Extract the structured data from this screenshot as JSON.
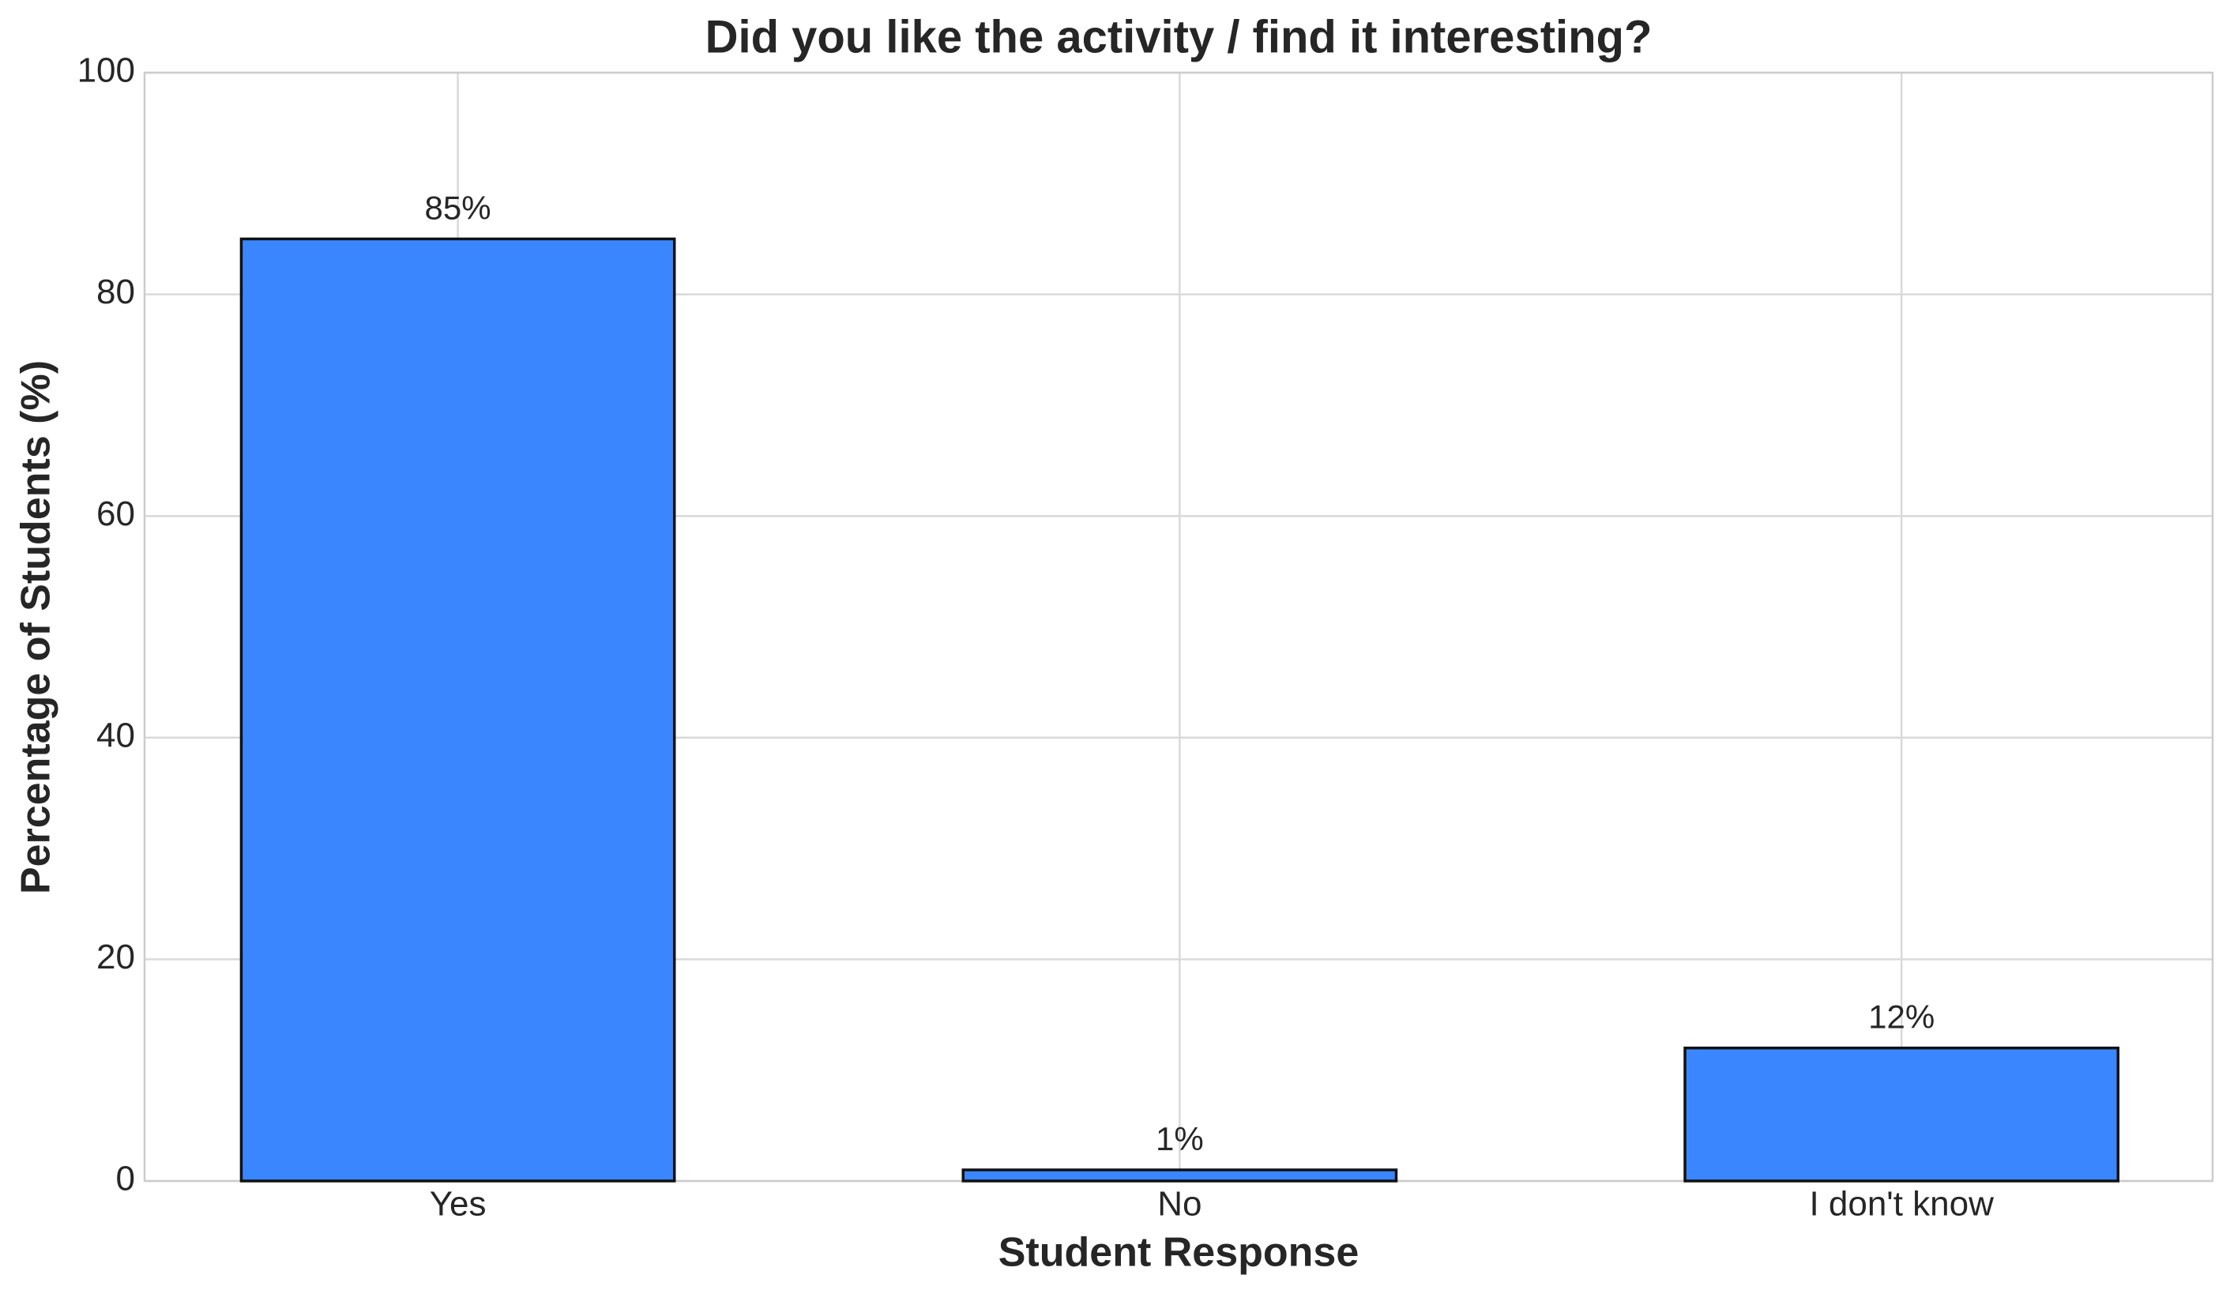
{
  "chart_data": {
    "type": "bar",
    "title": "Did you like the activity / find it interesting?",
    "x_label": "Student Response",
    "y_label": "Percentage of Students (%)",
    "categories": [
      "Yes",
      "No",
      "I don't know"
    ],
    "values": [
      85,
      1,
      12
    ],
    "value_labels": [
      "85%",
      "1%",
      "12%"
    ],
    "color": "#3a86ff",
    "ylim": [
      0,
      100
    ],
    "yticks": [
      0,
      20,
      40,
      60,
      80,
      100
    ],
    "grid": true
  }
}
